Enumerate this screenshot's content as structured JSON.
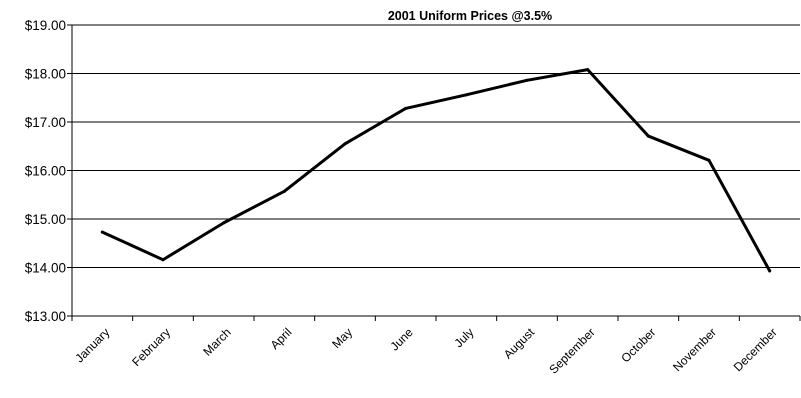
{
  "chart_data": {
    "type": "line",
    "title": "2001 Uniform Prices  @3.5%",
    "xlabel": "",
    "ylabel": "",
    "categories": [
      "January",
      "February",
      "March",
      "April",
      "May",
      "June",
      "July",
      "August",
      "September",
      "October",
      "November",
      "December"
    ],
    "series": [
      {
        "values": [
          14.73,
          14.16,
          14.92,
          15.57,
          16.55,
          17.28,
          17.56,
          17.86,
          18.08,
          16.71,
          16.21,
          13.93
        ]
      }
    ],
    "ylim": [
      13.0,
      19.0
    ],
    "yticks": [
      13,
      14,
      15,
      16,
      17,
      18,
      19
    ],
    "ytick_labels": [
      "$13.00",
      "$14.00",
      "$15.00",
      "$16.00",
      "$17.00",
      "$18.00",
      "$19.00"
    ],
    "grid": "horizontal",
    "legend": "none",
    "line_color": "#000000"
  }
}
